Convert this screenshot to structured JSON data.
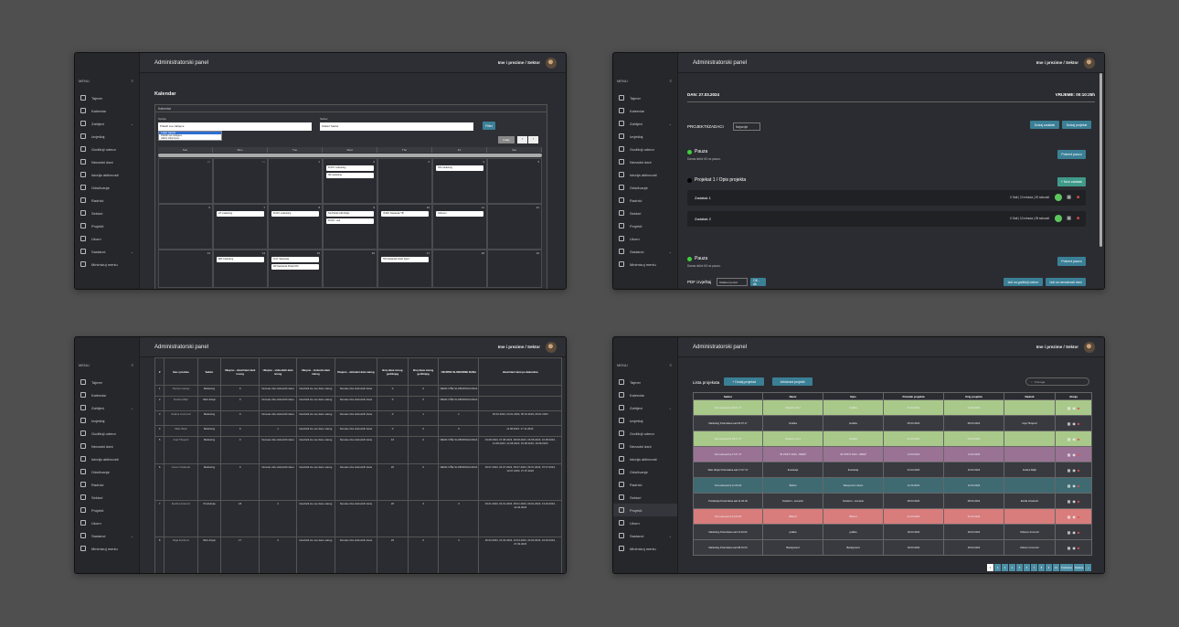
{
  "app": {
    "title": "Administratorski panel",
    "user": "Ime i prezime / Sektor"
  },
  "sidebar": {
    "menu_label": "MENU",
    "items": [
      {
        "label": "Tajmer"
      },
      {
        "label": "Kalendar"
      },
      {
        "label": "Zahtjevi"
      },
      {
        "label": "Izvještaj"
      },
      {
        "label": "Godišnji odmor"
      },
      {
        "label": "Nenadni dani"
      },
      {
        "label": "Istorija aktivnosti"
      },
      {
        "label": "Odsčivanje"
      },
      {
        "label": "Radnici"
      },
      {
        "label": "Sektori"
      },
      {
        "label": "Projekti"
      },
      {
        "label": "Ukorn"
      },
      {
        "label": "Sastanci"
      },
      {
        "label": "Minimizuj meniu"
      }
    ]
  },
  "calendar": {
    "heading": "Kalendar",
    "box_title": "Kalendar",
    "sector_label": "Sektor",
    "sector_value": "Izaberi Sektor",
    "select_label": "Opcija",
    "select_value": "Prikaži sve zahtjeve",
    "dropdown_options": [
      "Lokan zapisal",
      "Prikaži sve zahtjeve",
      "Ukloni izbor/unos"
    ],
    "filter_btn": "Filter",
    "today_btn": "today",
    "days": [
      "Sun",
      "Mon",
      "Tue",
      "Wed",
      "Thu",
      "Fri",
      "Sat"
    ],
    "week1": [
      "30",
      "31",
      "1",
      "2",
      "3",
      "4",
      "5"
    ],
    "week2": [
      "6",
      "7",
      "8",
      "9",
      "10",
      "11",
      "12"
    ],
    "week3": [
      "13",
      "14",
      "15",
      "16",
      "17",
      "18",
      "19"
    ],
    "events": {
      "wed1a": "R.M.K marketing",
      "wed1b": "IM marketing",
      "fri1": "NN marketing",
      "mon2": "AT marketing",
      "tue2": "R.M.K marketing",
      "wed2a": "NA Partal GM dizajn",
      "wed2b": "R.M.K. visit",
      "thu2": "IS.MK Sastanak TB",
      "fri2": "IGR.text",
      "mon3": "MR marketing",
      "tue3a": "N.M. Sastanak",
      "tue3b": "ZR Sastanak Partal GM",
      "thu3": "NN Sastanak Hotel I/god"
    }
  },
  "timer": {
    "date": "DAN: 27.03.2024",
    "time": "VRIJEME: 00:10:25h",
    "projects_label": "PROJEKTI/ZADACI",
    "sort_value": "Najnovije",
    "add_task": "Dodaj zadatak",
    "add_project": "Dodaj projekat",
    "pause1_title": "Pauza",
    "pause1_sub": "Danas ističe 60 na pauzu.",
    "pause_btn": "Pokreni pauzu",
    "project_title": "Projekat 1 / Opis projekta",
    "new_task_btn": "+ Novi zadatak",
    "task1": "Zadatak 1",
    "task1_time": "0 Sati | 10 minuta | 20 sekundi",
    "task2": "Zadatak 2",
    "task2_time": "0 Sati | 10 minuta | 05 sekundi",
    "pause2_title": "Pauza",
    "pause2_sub": "Danas ističe 60 na pauzu.",
    "pdf_label": "PDF izvještaj",
    "pdf_select": "Odaberi period",
    "pdf_btn": "OK - dk",
    "annual_btn": "Izdi za godišnji odmor",
    "sick_btn": "Izdi za neradnosti dani"
  },
  "employees": {
    "headers": [
      "#",
      "Ime i prezime",
      "Sektor",
      "Ukupno - iskorišteni dani novog",
      "Ukupno - slobodnih dani novog",
      "Ukupno - slobodni dani starog",
      "Ukupno - slobodni dani starog",
      "Broj dana novog godišnjeg",
      "Broj dana starog godišnjeg",
      "UKUPNO SLOBODNIH DANA",
      "Iskorišteni dani po datumima"
    ],
    "rows": [
      [
        "1",
        "Tamara Gaćaju",
        "Marketing",
        "0",
        "Nemate više slobodnih dana",
        "Iskoristili ste sve dane starog",
        "Nemate više slobodnih dana",
        "0",
        "0",
        "NEMA VIŠE SLOBODNIH DANA",
        ""
      ],
      [
        "2",
        "Dušica Miljić",
        "Web dizajn",
        "0",
        "Nemate više slobodnih dana",
        "Iskoristili ste sve dane starog",
        "Nemate više slobodnih dana",
        "0",
        "0",
        "NEMA VIŠE SLOBODNIH DANA",
        ""
      ],
      [
        "3",
        "Srdana Urumović",
        "Marketing",
        "0",
        "Nemate više slobodnih dana",
        "Iskoristili ste sve dane starog",
        "Nemate više slobodnih dana",
        "0",
        "1",
        "1",
        "03.01.2024, 04.01.2024, 05.01.2024, 06.01.2024"
      ],
      [
        "4",
        "Milan Bojić",
        "Marketing",
        "0",
        "1",
        "Iskoristili ste sve dane starog",
        "Nemate više slobodnih dana",
        "0",
        "0",
        "0",
        "11.08.2023. 17.11.2023."
      ],
      [
        "5",
        "Anja Tihojević",
        "Marketing",
        "0",
        "Nemate više slobodnih dana",
        "Iskoristili ste sve dane starog",
        "Nemate više slobodnih dana",
        "16",
        "0",
        "NEMA VIŠE SLOBODNIH DANA",
        "04.08.2023, 07.08.2023, 08.08.2023, 09.08.2023, 10.08.2023, 11.08.2023, 14.08.2023, 15.08.2023, 16.08.2023"
      ],
      [
        "6",
        "Goran Vulakoski",
        "Marketing",
        "0",
        "Nemate više slobodnih dana",
        "Iskoristili ste sve dane starog",
        "Nemate više slobodnih dana",
        "20",
        "0",
        "NEMA VIŠE SLOBODNIH DANA",
        "03.07.2023, 04.07.2023, 05.07.2023, 06.07.2023, 07.07.2023, 10.07.2023, 27.07.2023"
      ],
      [
        "7",
        "Đurđa Hrvatović",
        "Produkcija",
        "18",
        "2",
        "Iskoristili ste sve dane starog",
        "Nemate više slobodnih dana",
        "20",
        "3",
        "3",
        "03.01.2023, 04.01.2023, 05.01.2023, 09.01.2023, 13.03.2023, 14.03.2023"
      ],
      [
        "8",
        "Maja Đurđević",
        "Web dizajn",
        "17",
        "3",
        "Iskoristili ste sve dane starog",
        "Nemate više slobodnih dana",
        "20",
        "0",
        "3",
        "20.03.2023, 21.03.2023, 22.03.2023, 23.03.2023, 24.03.2023, 27.03.2023"
      ]
    ]
  },
  "projects": {
    "heading": "Lista projekata",
    "add_btn": "+ Dodaj projekat",
    "archive_btn": "Arhivirani projekti",
    "search_placeholder": "Pretraga",
    "headers": [
      "Sektor",
      "Naziv",
      "Opis",
      "Početak projekta",
      "Kraj projekta",
      "Radnik",
      "Akcija"
    ],
    "rows": [
      {
        "sektor": "Test sekupsvrnj 18.07.17",
        "naziv": "Obaveze 10.4",
        "opis": "Grafika",
        "start": "01.03.2024",
        "end": "04.03.2024",
        "radnik": "",
        "color": "#a9c98a"
      },
      {
        "sektor": "Marketing Postmdana sati 18.07.17",
        "naziv": "Grafika",
        "opis": "Grafika",
        "start": "05.03.2024",
        "end": "08.03.2024",
        "radnik": "Anja Tihojević",
        "color": "#383a40"
      },
      {
        "sektor": "Test sekupsvrnj 18.07.17",
        "naziv": "Obaveze 10.4",
        "opis": "Grafika",
        "start": "01.03.2024",
        "end": "04.03.2024",
        "radnik": "",
        "color": "#a9c98a"
      },
      {
        "sektor": "Test sekupsvrnj 17.07.17",
        "naziv": "IM PRINT 2024 - MREŽ",
        "opis": "IM PRINT 2024 - MREŽ",
        "start": "14.03.2024",
        "end": "14.03.2024",
        "radnik": "",
        "color": "#9a7294"
      },
      {
        "sektor": "Web dizajn Postmdana sati 17.07.17",
        "naziv": "Ilustracija",
        "opis": "Ilustracija",
        "start": "01.03.2024",
        "end": "10.03.2024",
        "radnik": "Dušica Miljić",
        "color": "#383a40"
      },
      {
        "sektor": "Test sekupsvrnj 11.03.02",
        "naziv": "Šablon",
        "opis": "Razgovorni rokovi",
        "start": "11.03.2024",
        "end": "12.03.2024",
        "radnik": "",
        "color": "#3f6a72"
      },
      {
        "sektor": "Produkcija Postmdana sati 11.04.02",
        "naziv": "Kreativni - scenario",
        "opis": "Kreativni - scenario",
        "start": "08.03.2024",
        "end": "08.03.2024",
        "radnik": "Đurđa Hrvatović",
        "color": "#383a40"
      },
      {
        "sektor": "Test sekupsvrnj 11.04.02",
        "naziv": "Bilbord",
        "opis": "Bilbord",
        "start": "01.03.2024",
        "end": "01.03.2024",
        "radnik": "",
        "color": "#d97c7c"
      },
      {
        "sektor": "Marketing Postmdana sati 11.04.02",
        "naziv": "grafika",
        "opis": "grafika",
        "start": "18.03.2024",
        "end": "18.03.2024",
        "radnik": "Srdana Urumović",
        "color": "#383a40"
      },
      {
        "sektor": "Marketing Postmdana sati 38.01.03",
        "naziv": "Background",
        "opis": "Background",
        "start": "18.03.2024",
        "end": "18.04.2024",
        "radnik": "Zdravo Urumović",
        "color": "#383a40"
      }
    ],
    "pagination": [
      "1",
      "2",
      "3",
      "4",
      "5",
      "6",
      "7",
      "8",
      "9",
      "10",
      "Prethodna",
      "Sledeća",
      "»"
    ]
  }
}
